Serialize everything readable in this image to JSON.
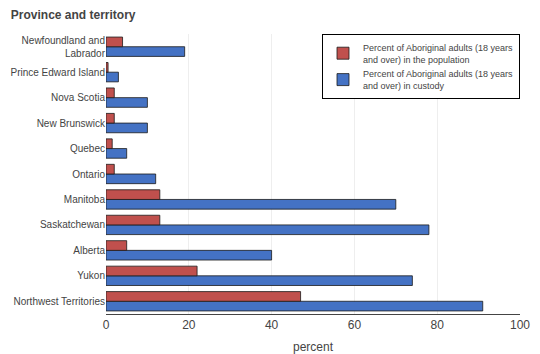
{
  "chart_data": {
    "type": "bar",
    "orientation": "horizontal",
    "title": "Province and territory",
    "xlabel": "percent",
    "categories": [
      "Northwest Territories",
      "Yukon",
      "Alberta",
      "Saskatchewan",
      "Manitoba",
      "Ontario",
      "Quebec",
      "New Brunswick",
      "Nova Scotia",
      "Prince Edward Island",
      "Newfoundland and\nLabrador"
    ],
    "series": [
      {
        "name": "Percent of Aboriginal adults (18 years\nand over) in the population",
        "color": "#c0504d",
        "values": [
          47,
          22,
          5,
          13,
          13,
          2,
          1.5,
          2,
          2,
          0.5,
          4
        ]
      },
      {
        "name": "Percent of Aboriginal adults (18 years\nand over) in custody",
        "color": "#4472c4",
        "values": [
          91,
          74,
          40,
          78,
          70,
          12,
          5,
          10,
          10,
          3,
          19
        ]
      }
    ],
    "xlim": [
      0,
      100
    ],
    "xticks": [
      0,
      20,
      40,
      60,
      80,
      100
    ],
    "grid": true,
    "legend": "upper right"
  }
}
